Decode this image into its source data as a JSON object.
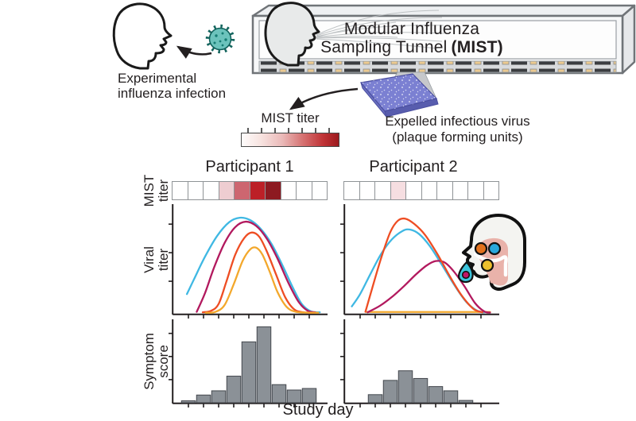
{
  "illustration": {
    "infection_caption_l1": "Experimental",
    "infection_caption_l2": "influenza infection",
    "tunnel_title_l1": "Modular Influenza",
    "tunnel_title_l2a": "Sampling Tunnel",
    "tunnel_title_l2b": "(MIST)",
    "mist_titer_label": "MIST titer",
    "expelled_l1": "Expelled infectious virus",
    "expelled_l2": "(plaque forming units)",
    "colorbar": {
      "label": "MIST titer",
      "gradient_start": "#fefcfb",
      "gradient_end": "#9c1a1e"
    }
  },
  "panels": {
    "participant1_title": "Participant 1",
    "participant2_title": "Participant 2",
    "ylabel_mist_l1": "MIST",
    "ylabel_mist_l2": "titer",
    "ylabel_viral_l1": "Viral",
    "ylabel_viral_l2": "titer",
    "ylabel_symptom_l1": "Symptom",
    "ylabel_symptom_l2": "score",
    "xlabel": "Study day"
  },
  "colors": {
    "curve_cyan": "#3fb8e3",
    "curve_magenta": "#b2195e",
    "curve_orange_red": "#ee4d23",
    "curve_yellow": "#f3a82c",
    "bar_fill": "#8b9197",
    "bar_stroke": "#44484e",
    "axis": "#231f20",
    "virus_teal": "#6cc3bc",
    "plate_purple": "#7b80d2",
    "airway_pink": "#e9b2aa",
    "droplet_cyan": "#3cc4dc"
  },
  "chart_data": [
    {
      "type": "heatmap",
      "participant": "Participant 1",
      "label": "MIST titer",
      "n_days": 10,
      "cell_colors": [
        "#ffffff",
        "#ffffff",
        "#ffffff",
        "#eecdd1",
        "#cd6670",
        "#bc2027",
        "#8d1a21",
        "#ffffff",
        "#ffffff",
        "#ffffff"
      ]
    },
    {
      "type": "heatmap",
      "participant": "Participant 2",
      "label": "MIST titer",
      "n_days": 10,
      "cell_colors": [
        "#ffffff",
        "#ffffff",
        "#ffffff",
        "#f6dee1",
        "#ffffff",
        "#ffffff",
        "#ffffff",
        "#ffffff",
        "#ffffff",
        "#ffffff"
      ]
    },
    {
      "type": "line",
      "participant": "Participant 1",
      "ylabel": "Viral titer",
      "xlabel": "Study day",
      "x_range": [
        0,
        10
      ],
      "y_range": [
        0,
        1
      ],
      "series": [
        {
          "name": "cyan",
          "color": "#3fb8e3",
          "points": [
            [
              0.9,
              0.2
            ],
            [
              1.4,
              0.36
            ],
            [
              2.1,
              0.58
            ],
            [
              2.9,
              0.79
            ],
            [
              3.7,
              0.93
            ],
            [
              4.4,
              0.975
            ],
            [
              5.1,
              0.95
            ],
            [
              5.8,
              0.86
            ],
            [
              6.5,
              0.71
            ],
            [
              7.2,
              0.5
            ],
            [
              7.9,
              0.27
            ],
            [
              8.5,
              0.1
            ],
            [
              9.1,
              0.025
            ],
            [
              9.7,
              0.015
            ]
          ]
        },
        {
          "name": "magenta",
          "color": "#b2195e",
          "points": [
            [
              1.55,
              0.02
            ],
            [
              2.1,
              0.21
            ],
            [
              2.7,
              0.47
            ],
            [
              3.4,
              0.72
            ],
            [
              4.1,
              0.88
            ],
            [
              4.8,
              0.935
            ],
            [
              5.5,
              0.89
            ],
            [
              6.2,
              0.76
            ],
            [
              6.9,
              0.56
            ],
            [
              7.6,
              0.32
            ],
            [
              8.3,
              0.12
            ],
            [
              8.9,
              0.03
            ],
            [
              9.4,
              0.015
            ]
          ]
        },
        {
          "name": "orange-red",
          "color": "#ee4d23",
          "points": [
            [
              1.95,
              0.015
            ],
            [
              2.5,
              0.03
            ],
            [
              3.0,
              0.1
            ],
            [
              3.5,
              0.32
            ],
            [
              4.1,
              0.6
            ],
            [
              4.7,
              0.77
            ],
            [
              5.2,
              0.825
            ],
            [
              5.7,
              0.78
            ],
            [
              6.2,
              0.63
            ],
            [
              6.8,
              0.4
            ],
            [
              7.4,
              0.17
            ],
            [
              8.0,
              0.045
            ],
            [
              8.6,
              0.015
            ],
            [
              9.3,
              0.01
            ]
          ]
        },
        {
          "name": "yellow",
          "color": "#f3a82c",
          "points": [
            [
              2.15,
              0.01
            ],
            [
              2.8,
              0.02
            ],
            [
              3.4,
              0.09
            ],
            [
              4.0,
              0.3
            ],
            [
              4.6,
              0.54
            ],
            [
              5.1,
              0.655
            ],
            [
              5.5,
              0.67
            ],
            [
              5.9,
              0.6
            ],
            [
              6.4,
              0.42
            ],
            [
              6.9,
              0.22
            ],
            [
              7.5,
              0.07
            ],
            [
              8.1,
              0.02
            ],
            [
              8.9,
              0.012
            ],
            [
              9.6,
              0.01
            ]
          ]
        }
      ]
    },
    {
      "type": "line",
      "participant": "Participant 2",
      "ylabel": "Viral titer",
      "xlabel": "Study day",
      "x_range": [
        0,
        10
      ],
      "y_range": [
        0,
        1
      ],
      "series": [
        {
          "name": "yellow",
          "color": "#f3a82c",
          "points": [
            [
              1.4,
              0.018
            ],
            [
              5.5,
              0.018
            ],
            [
              9.6,
              0.018
            ]
          ]
        },
        {
          "name": "cyan",
          "color": "#3fb8e3",
          "points": [
            [
              0.45,
              0.075
            ],
            [
              1.0,
              0.2
            ],
            [
              1.7,
              0.41
            ],
            [
              2.4,
              0.61
            ],
            [
              3.1,
              0.755
            ],
            [
              3.8,
              0.84
            ],
            [
              4.3,
              0.855
            ],
            [
              4.9,
              0.81
            ],
            [
              5.6,
              0.69
            ],
            [
              6.4,
              0.5
            ],
            [
              7.2,
              0.3
            ],
            [
              8.0,
              0.125
            ],
            [
              8.7,
              0.035
            ],
            [
              9.2,
              0.015
            ]
          ]
        },
        {
          "name": "magenta",
          "color": "#b2195e",
          "points": [
            [
              1.5,
              0.015
            ],
            [
              2.3,
              0.08
            ],
            [
              3.1,
              0.17
            ],
            [
              3.9,
              0.28
            ],
            [
              4.7,
              0.4
            ],
            [
              5.4,
              0.49
            ],
            [
              6.0,
              0.535
            ],
            [
              6.6,
              0.52
            ],
            [
              7.2,
              0.43
            ],
            [
              7.9,
              0.28
            ],
            [
              8.6,
              0.11
            ],
            [
              9.2,
              0.025
            ],
            [
              9.6,
              0.012
            ]
          ]
        },
        {
          "name": "orange-red",
          "color": "#ee4d23",
          "points": [
            [
              1.35,
              0.02
            ],
            [
              1.8,
              0.26
            ],
            [
              2.4,
              0.57
            ],
            [
              3.0,
              0.83
            ],
            [
              3.5,
              0.945
            ],
            [
              4.0,
              0.965
            ],
            [
              4.6,
              0.91
            ],
            [
              5.3,
              0.8
            ],
            [
              6.1,
              0.61
            ],
            [
              6.9,
              0.39
            ],
            [
              7.7,
              0.19
            ],
            [
              8.5,
              0.05
            ],
            [
              9.1,
              0.015
            ]
          ]
        }
      ]
    },
    {
      "type": "bar",
      "participant": "Participant 1",
      "ylabel": "Symptom score",
      "xlabel": "Study day",
      "x": [
        1,
        2,
        3,
        4,
        5,
        6,
        7,
        8,
        9
      ],
      "values": [
        0.025,
        0.1,
        0.155,
        0.345,
        0.79,
        0.985,
        0.235,
        0.165,
        0.185
      ],
      "bar_color": "#8b9197"
    },
    {
      "type": "bar",
      "participant": "Participant 2",
      "ylabel": "Symptom score",
      "xlabel": "Study day",
      "x": [
        2,
        3,
        4,
        5,
        6,
        7,
        8
      ],
      "values": [
        0.105,
        0.29,
        0.415,
        0.315,
        0.21,
        0.155,
        0.03
      ],
      "bar_color": "#8b9197"
    }
  ]
}
